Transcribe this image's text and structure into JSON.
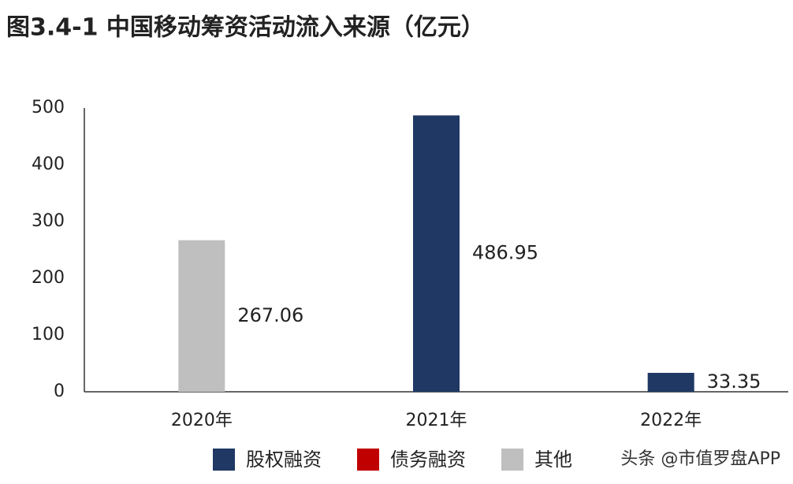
{
  "chart_data": {
    "type": "bar",
    "title": "图3.4-1 中国移动筹资活动流入来源（亿元）",
    "categories": [
      "2020年",
      "2021年",
      "2022年"
    ],
    "series": [
      {
        "name": "股权融资",
        "color": "#1f3864",
        "values": [
          null,
          486.95,
          33.35
        ]
      },
      {
        "name": "债务融资",
        "color": "#c00000",
        "values": [
          null,
          null,
          null
        ]
      },
      {
        "name": "其他",
        "color": "#bfbfbf",
        "values": [
          267.06,
          null,
          null
        ]
      }
    ],
    "ylim": [
      0,
      500
    ],
    "yticks": [
      0,
      100,
      200,
      300,
      400,
      500
    ],
    "legend": "bottom",
    "watermark": "头条 @市值罗盘APP"
  }
}
